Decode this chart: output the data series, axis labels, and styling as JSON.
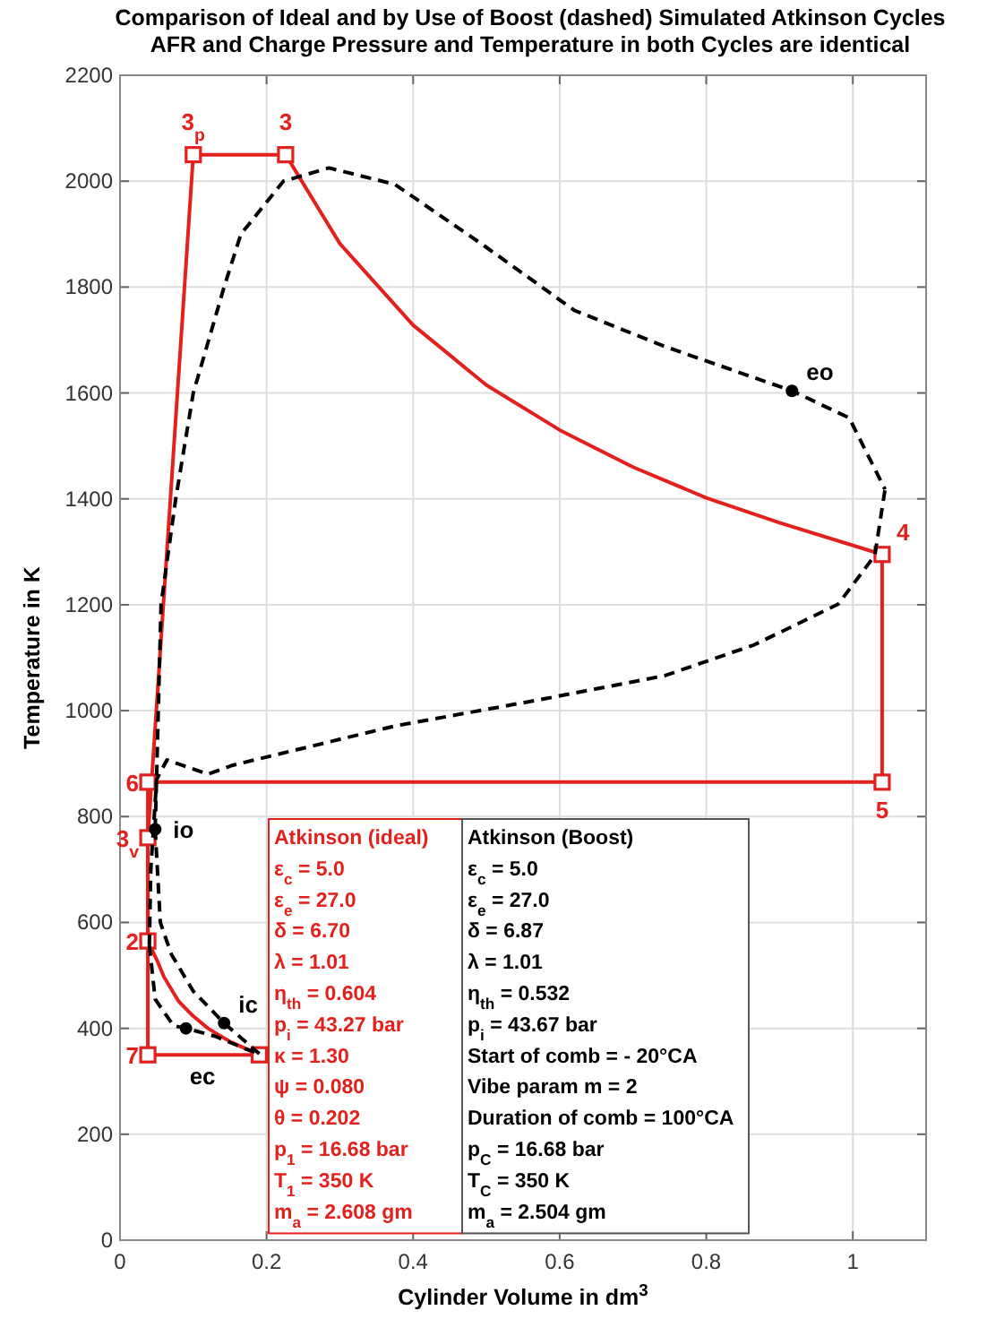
{
  "chart_data": {
    "type": "line",
    "title": "Comparison of Ideal and by Use of Boost (dashed) Simulated Atkinson Cycles",
    "subtitle": "AFR and Charge Pressure and Temperature in both Cycles are identical",
    "xlabel": "Cylinder Volume in dm$^{3}$",
    "ylabel": "Temperature in K",
    "xlim": [
      0,
      1.1
    ],
    "ylim": [
      0,
      2200
    ],
    "xticks": [
      0,
      0.2,
      0.4,
      0.6,
      0.8,
      1
    ],
    "yticks": [
      0,
      200,
      400,
      600,
      800,
      1000,
      1200,
      1400,
      1600,
      1800,
      2000,
      2200
    ],
    "grid": true,
    "series": [
      {
        "name": "Atkinson (ideal)",
        "line_style": "solid",
        "color": "#e3211c",
        "x": [
          0.038,
          0.038,
          0.1,
          0.226,
          0.3,
          0.4,
          0.5,
          0.6,
          0.7,
          0.8,
          0.9,
          1.04,
          1.04
        ],
        "values": [
          565,
          760,
          2050,
          2050,
          1882,
          1728,
          1615,
          1530,
          1460,
          1402,
          1355,
          1295,
          865
        ]
      },
      {
        "line_style": "solid",
        "color": "#e3211c",
        "x": [
          0.038,
          0.05,
          0.06,
          0.08,
          0.1,
          0.12,
          0.15,
          0.19
        ],
        "values": [
          565,
          530,
          497,
          451,
          423,
          400,
          375,
          350
        ]
      },
      {
        "line_style": "solid",
        "color": "#e3211c",
        "x": [
          0.038,
          0.038,
          0.19
        ],
        "values": [
          865,
          350,
          350
        ]
      },
      {
        "line_style": "solid",
        "color": "#e3211c",
        "x": [
          0.038,
          1.04
        ],
        "values": [
          865,
          865
        ]
      },
      {
        "type": "scatter",
        "marker": "square",
        "color": "#e3211c",
        "x": [
          0.19,
          0.038,
          0.038,
          0.038,
          0.1,
          0.226,
          1.04,
          1.04,
          0.038
        ],
        "values": [
          350,
          565,
          760,
          865,
          2050,
          2050,
          1295,
          865,
          350
        ]
      },
      {
        "name": "Atkinson (Boost)",
        "line_style": "dashed",
        "color": "#000000",
        "x": [
          0.048,
          0.05,
          0.056,
          0.076,
          0.1,
          0.142,
          0.165,
          0.223,
          0.285,
          0.375,
          0.497,
          0.62,
          0.743,
          0.917,
          0.995,
          1.044
        ],
        "values": [
          776,
          880,
          1200,
          1400,
          1600,
          1800,
          1900,
          2000,
          2025,
          1994,
          1878,
          1756,
          1688,
          1604,
          1553,
          1418
        ]
      },
      {
        "line_style": "dashed",
        "color": "#000000",
        "x": [
          0.048,
          0.055,
          0.07,
          0.1,
          0.142,
          0.19
        ],
        "values": [
          776,
          600,
          540,
          470,
          410,
          352
        ]
      },
      {
        "line_style": "dashed",
        "color": "#000000",
        "x": [
          0.04,
          0.042,
          0.05,
          0.064,
          0.12,
          0.154,
          0.375,
          0.578,
          0.743,
          0.865,
          0.98,
          1.03,
          1.044
        ],
        "values": [
          557,
          700,
          870,
          907,
          880,
          897,
          971,
          1022,
          1066,
          1124,
          1201,
          1293,
          1418
        ]
      },
      {
        "line_style": "dashed",
        "color": "#000000",
        "x": [
          0.04,
          0.048,
          0.073,
          0.09,
          0.13,
          0.17,
          0.19
        ],
        "values": [
          557,
          455,
          405,
          400,
          385,
          362,
          352
        ]
      },
      {
        "type": "scatter",
        "marker": "circle",
        "color": "#000000",
        "x": [
          0.09,
          0.142,
          0.048,
          0.917
        ],
        "values": [
          400,
          410,
          776,
          1604
        ]
      }
    ],
    "annotations": [
      "ε$_{c}$ = 5.0\nε$_{e}$ = 27.0\nδ = 6.70\nλ = 1.01\nη$_{th}$ = 0.604\np$_{i}$ = 43.27 bar\nκ = 1.30\nψ = 0.080\nθ = 0.202\np$_{1}$ = 16.68 bar\nT$_{1}$ = 350 K\nm$_{a}$ = 2.608 gm",
      "ε$_{c}$ = 5.0\nε$_{e}$ = 27.0\nδ = 6.87\nλ = 1.01\nη$_{th}$ = 0.532\np$_{i}$ = 43.67 bar\nStart of comb = - 20°CA\nVibe param m = 2\nDuration of comb = 100°CA\np$_{C}$ = 16.68 bar\nT$_{C}$ = 350 K\nm$_{a}$ = 2.504 gm",
      {
        "text": "3$_{p}$",
        "x": 0.1,
        "y": 2050
      },
      {
        "text": "3",
        "x": 0.226,
        "y": 2050
      },
      {
        "text": "4",
        "x": 1.04,
        "y": 1295
      },
      {
        "text": "5",
        "x": 1.04,
        "y": 865
      },
      {
        "text": "6",
        "x": 0.038,
        "y": 865
      },
      {
        "text": "3$_{v}$",
        "x": 0.038,
        "y": 760
      },
      {
        "text": "2",
        "x": 0.038,
        "y": 565
      },
      {
        "text": "7",
        "x": 0.038,
        "y": 350
      },
      {
        "text": "eo",
        "x": 0.917,
        "y": 1604
      },
      {
        "text": "io",
        "x": 0.048,
        "y": 776
      },
      {
        "text": "ic",
        "x": 0.142,
        "y": 410
      },
      {
        "text": "ec",
        "x": 0.09,
        "y": 400
      }
    ]
  }
}
